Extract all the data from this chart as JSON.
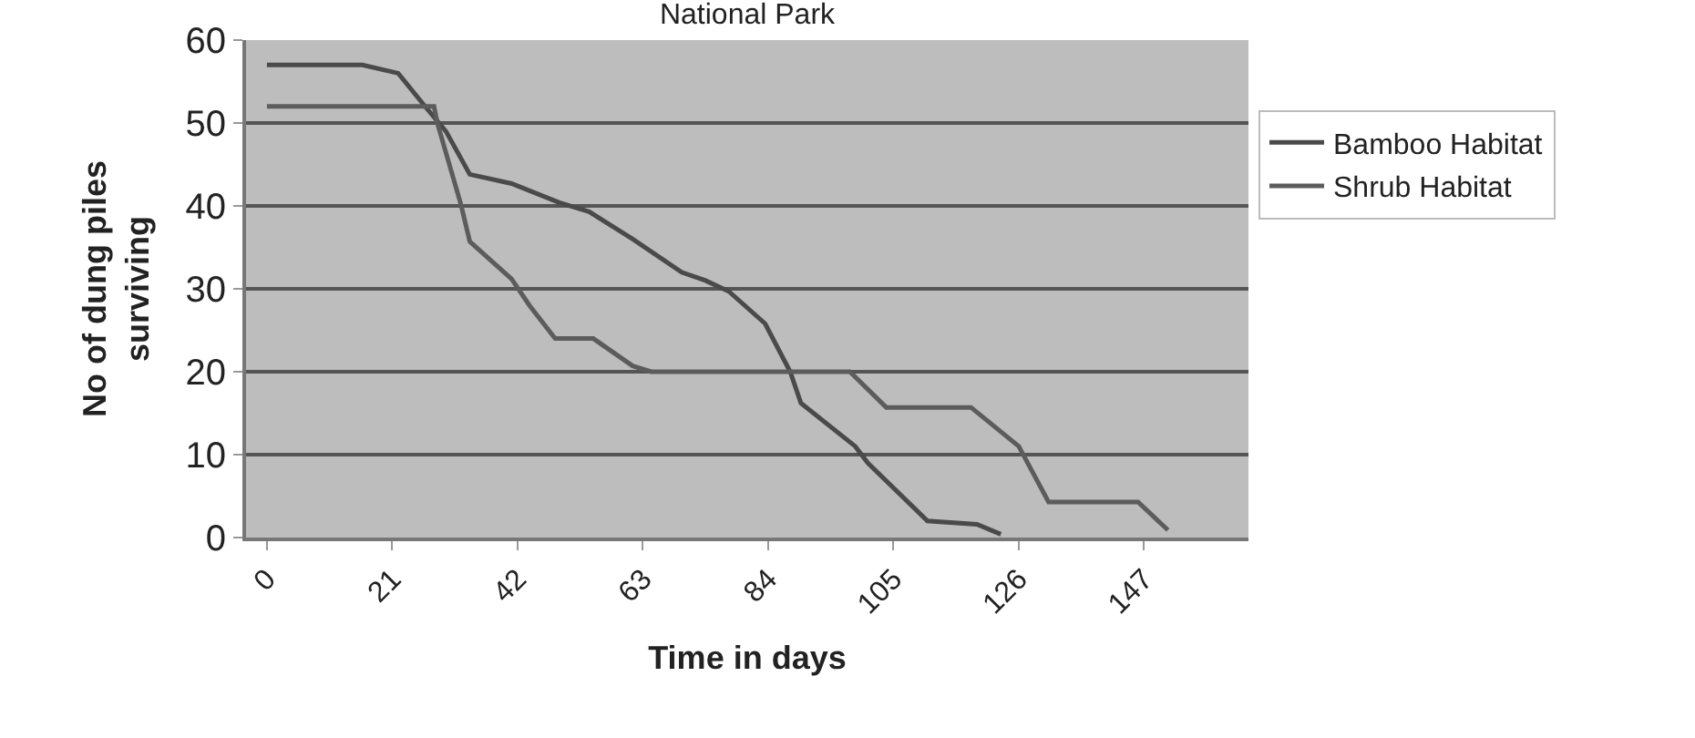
{
  "chart_data": {
    "type": "line",
    "title": "National Park",
    "xlabel": "Time in days",
    "ylabel": "No of dung piles\nsurviving",
    "xlim": [
      -3.5,
      164.5
    ],
    "xticks": [
      0,
      21,
      42,
      63,
      84,
      105,
      126,
      147
    ],
    "ylim": [
      0,
      60
    ],
    "yticks": [
      0,
      10,
      20,
      30,
      40,
      50,
      60
    ],
    "grid": "y",
    "legend": "right",
    "marker": "none",
    "line_style": "solid",
    "series": [
      {
        "name": "Bamboo Habitat",
        "color": "#4a4a4a",
        "x": [
          0,
          16,
          22,
          26.5,
          30,
          34,
          41,
          49,
          54,
          61.3,
          69.5,
          73.5,
          77.4,
          83.5,
          87.7,
          89.5,
          98.6,
          100.7,
          110.7,
          119,
          123
        ],
        "values": [
          57,
          57,
          56,
          52,
          49,
          43.8,
          42.7,
          40.4,
          39.3,
          36,
          32,
          31,
          29.7,
          25.8,
          20,
          16.2,
          11,
          9,
          2,
          1.6,
          0.4
        ]
      },
      {
        "name": "Shrub Habitat",
        "color": "#5c5c5c",
        "x": [
          0,
          28,
          28.6,
          32.5,
          34,
          41,
          44,
          48.3,
          54.7,
          61.3,
          64.4,
          97.7,
          103.8,
          118,
          126,
          131,
          146,
          151
        ],
        "values": [
          52,
          52,
          49.9,
          40.2,
          35.7,
          31.2,
          28,
          24,
          24,
          20.7,
          20,
          20,
          15.7,
          15.7,
          11,
          4.3,
          4.3,
          0.9
        ]
      }
    ]
  }
}
